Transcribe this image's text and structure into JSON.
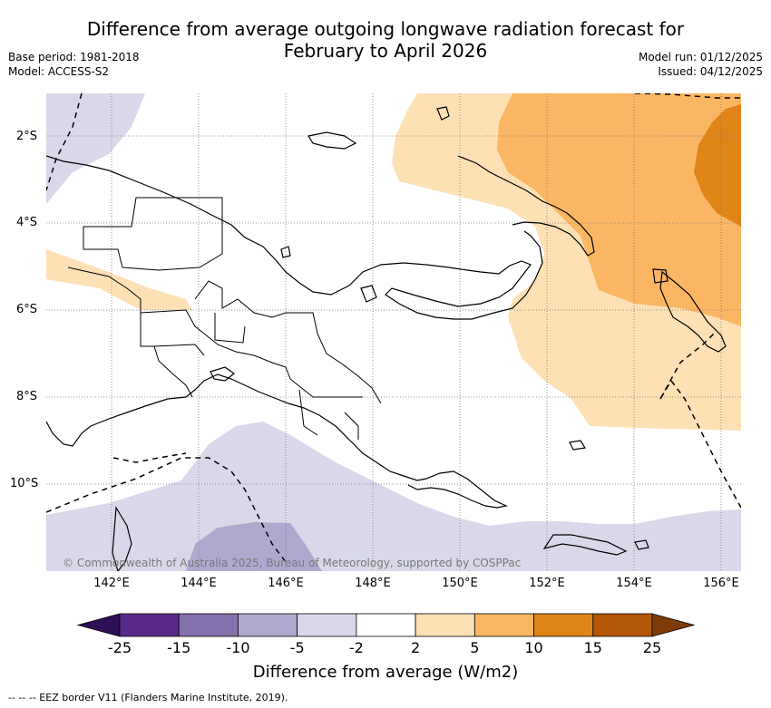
{
  "title_line1": "Difference from average outgoing longwave radiation forecast for",
  "title_line2": "February to April 2026",
  "base_period": "Base period: 1981-2018",
  "model": "Model: ACCESS-S2",
  "model_run": "Model run: 01/12/2025",
  "issued": "Issued: 04/12/2025",
  "lat_labels": [
    "2°S",
    "4°S",
    "6°S",
    "8°S",
    "10°S"
  ],
  "lon_labels": [
    "142°E",
    "144°E",
    "146°E",
    "148°E",
    "150°E",
    "152°E",
    "154°E",
    "156°E"
  ],
  "copyright": "© Commonwealth of Australia 2025, Bureau of Meteorology, supported by COSPPac",
  "colorbar": {
    "ticks": [
      "-25",
      "-15",
      "-10",
      "-5",
      "-2",
      "2",
      "5",
      "10",
      "15",
      "25"
    ],
    "label": "Difference from average (W/m2)",
    "colors": [
      "#5a2a8a",
      "#8470aa",
      "#b1a8d0",
      "#d8d8ea",
      "#ffffff",
      "#fde0b4",
      "#fbb663",
      "#e08418",
      "#b35806"
    ],
    "under_color": "#2d0f55",
    "over_color": "#7f3b08"
  },
  "footer": "-- -- -- EEZ border V11 (Flanders Marine Institute, 2019)."
}
